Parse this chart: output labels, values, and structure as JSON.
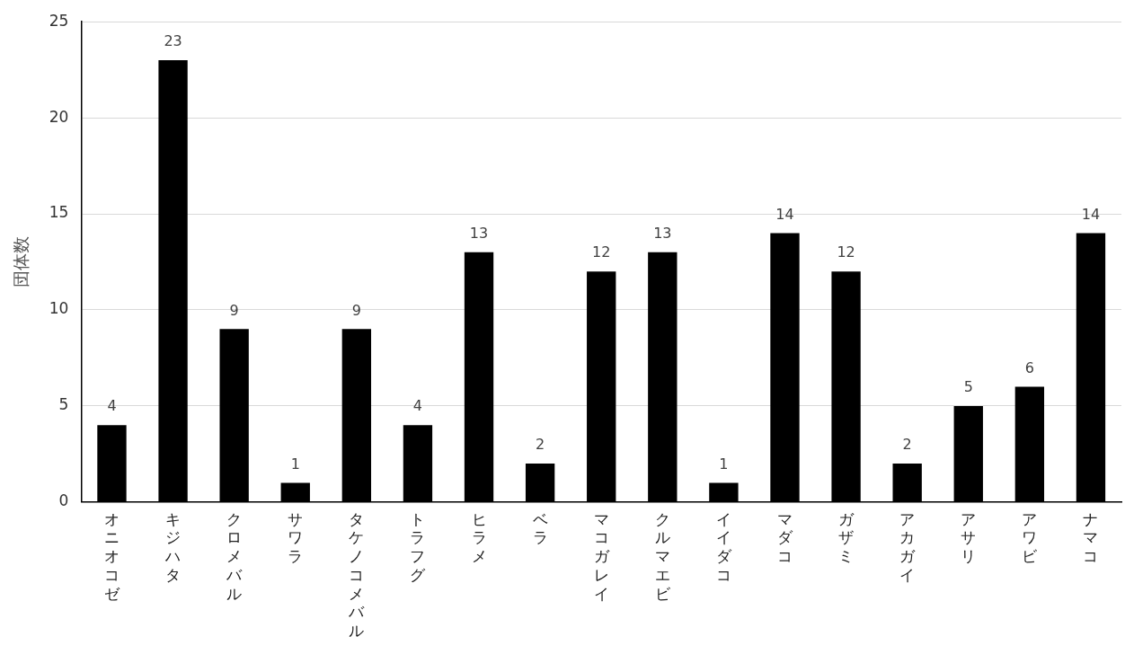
{
  "chart_data": {
    "type": "bar",
    "ylabel": "団体数",
    "categories": [
      "オニオコゼ",
      "キジハタ",
      "クロメバル",
      "サワラ",
      "タケノコメバル",
      "トラフグ",
      "ヒラメ",
      "ベラ",
      "マコガレイ",
      "クルマエビ",
      "イイダコ",
      "マダコ",
      "ガザミ",
      "アカガイ",
      "アサリ",
      "アワビ",
      "ナマコ"
    ],
    "values": [
      4,
      23,
      9,
      1,
      9,
      4,
      13,
      2,
      12,
      13,
      1,
      14,
      12,
      2,
      5,
      6,
      14
    ],
    "color": "#000000",
    "ylim": [
      0,
      25
    ],
    "yticks": [
      0,
      5,
      10,
      15,
      20,
      25
    ],
    "grid": "y",
    "data_labels": true,
    "legend": false
  }
}
